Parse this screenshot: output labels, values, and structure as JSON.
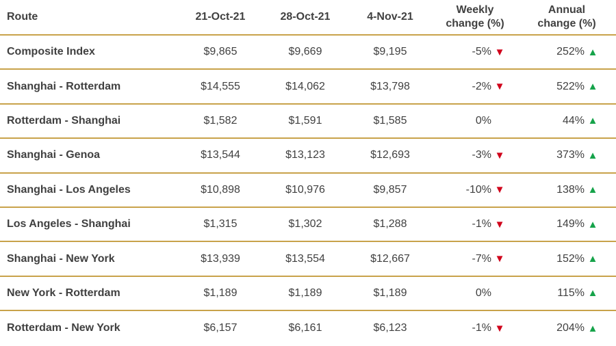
{
  "chart_data": {
    "type": "table",
    "columns": [
      "Route",
      "21-Oct-21",
      "28-Oct-21",
      "4-Nov-21",
      "Weekly change (%)",
      "Annual change (%)"
    ],
    "header": {
      "route": "Route",
      "d1": "21-Oct-21",
      "d2": "28-Oct-21",
      "d3": "4-Nov-21",
      "weekly_l1": "Weekly",
      "weekly_l2": "change (%)",
      "annual_l1": "Annual",
      "annual_l2": "change (%)"
    },
    "rows": [
      {
        "route": "Composite Index",
        "d1": "$9,865",
        "d2": "$9,669",
        "d3": "$9,195",
        "weekly": "-5%",
        "weekly_dir": "down",
        "annual": "252%",
        "annual_dir": "up"
      },
      {
        "route": "Shanghai - Rotterdam",
        "d1": "$14,555",
        "d2": "$14,062",
        "d3": "$13,798",
        "weekly": "-2%",
        "weekly_dir": "down",
        "annual": "522%",
        "annual_dir": "up"
      },
      {
        "route": "Rotterdam - Shanghai",
        "d1": "$1,582",
        "d2": "$1,591",
        "d3": "$1,585",
        "weekly": "0%",
        "weekly_dir": "none",
        "annual": "44%",
        "annual_dir": "up"
      },
      {
        "route": "Shanghai - Genoa",
        "d1": "$13,544",
        "d2": "$13,123",
        "d3": "$12,693",
        "weekly": "-3%",
        "weekly_dir": "down",
        "annual": "373%",
        "annual_dir": "up"
      },
      {
        "route": "Shanghai - Los Angeles",
        "d1": "$10,898",
        "d2": "$10,976",
        "d3": "$9,857",
        "weekly": "-10%",
        "weekly_dir": "down",
        "annual": "138%",
        "annual_dir": "up"
      },
      {
        "route": "Los Angeles - Shanghai",
        "d1": "$1,315",
        "d2": "$1,302",
        "d3": "$1,288",
        "weekly": "-1%",
        "weekly_dir": "down",
        "annual": "149%",
        "annual_dir": "up"
      },
      {
        "route": "Shanghai - New York",
        "d1": "$13,939",
        "d2": "$13,554",
        "d3": "$12,667",
        "weekly": "-7%",
        "weekly_dir": "down",
        "annual": "152%",
        "annual_dir": "up"
      },
      {
        "route": "New York - Rotterdam",
        "d1": "$1,189",
        "d2": "$1,189",
        "d3": "$1,189",
        "weekly": "0%",
        "weekly_dir": "none",
        "annual": "115%",
        "annual_dir": "up"
      },
      {
        "route": "Rotterdam - New York",
        "d1": "$6,157",
        "d2": "$6,161",
        "d3": "$6,123",
        "weekly": "-1%",
        "weekly_dir": "down",
        "annual": "204%",
        "annual_dir": "up"
      }
    ],
    "colors": {
      "down": "#d0021b",
      "up": "#16a34a",
      "rule": "#c8a24a"
    }
  }
}
